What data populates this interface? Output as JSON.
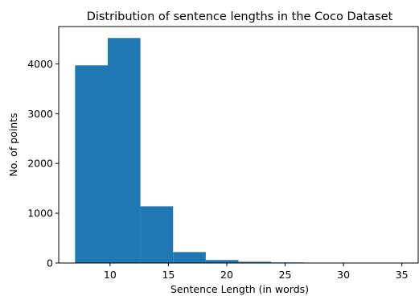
{
  "chart_data": {
    "type": "bar",
    "title": "Distribution of sentence lengths in the Coco Dataset",
    "xlabel": "Sentence Length (in words)",
    "ylabel": "No. of points",
    "xlim": [
      5.6,
      36.4
    ],
    "ylim": [
      0,
      4750
    ],
    "xticks": [
      10,
      15,
      20,
      25,
      30,
      35
    ],
    "yticks": [
      0,
      1000,
      2000,
      3000,
      4000
    ],
    "bar_color": "#1f77b4",
    "bins": [
      {
        "start": 7.0,
        "end": 9.8,
        "value": 3970
      },
      {
        "start": 9.8,
        "end": 12.6,
        "value": 4520
      },
      {
        "start": 12.6,
        "end": 15.4,
        "value": 1140
      },
      {
        "start": 15.4,
        "end": 18.2,
        "value": 220
      },
      {
        "start": 18.2,
        "end": 21.0,
        "value": 60
      },
      {
        "start": 21.0,
        "end": 23.8,
        "value": 25
      },
      {
        "start": 23.8,
        "end": 26.6,
        "value": 12
      },
      {
        "start": 26.6,
        "end": 29.4,
        "value": 6
      },
      {
        "start": 29.4,
        "end": 32.2,
        "value": 3
      },
      {
        "start": 32.2,
        "end": 35.0,
        "value": 2
      }
    ],
    "grid": false,
    "legend": "none"
  }
}
